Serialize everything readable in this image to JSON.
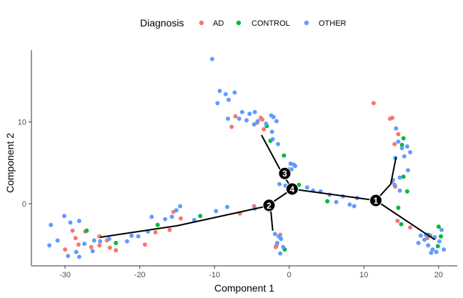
{
  "chart_data": {
    "type": "scatter",
    "title": "",
    "xlabel": "Component 1",
    "ylabel": "Component 2",
    "xlim": [
      -34.5,
      22.5
    ],
    "ylim": [
      -7.6,
      18.8
    ],
    "x_ticks": [
      -30,
      -20,
      -10,
      0,
      10,
      20
    ],
    "y_ticks": [
      0,
      10
    ],
    "tick_labels_x": [
      "-30",
      "-20",
      "-10",
      "0",
      "10",
      "20"
    ],
    "tick_labels_y": [
      "0",
      "10"
    ],
    "grid": false,
    "legend": {
      "title": "Diagnosis",
      "placement": "top",
      "entries": [
        "AD",
        "CONTROL",
        "OTHER"
      ]
    },
    "colors": {
      "AD": "#F8766D",
      "CONTROL": "#00BA38",
      "OTHER": "#619CFF"
    },
    "series": [
      {
        "name": "AD",
        "points": [
          [
            -27.3,
            -3.4
          ],
          [
            -25.4,
            -4.0
          ],
          [
            -25.4,
            -5.1
          ],
          [
            -24.0,
            -5.4
          ],
          [
            -24.4,
            -4.5
          ],
          [
            -23.2,
            -5.7
          ],
          [
            -28.6,
            -4.2
          ],
          [
            -29.0,
            -3.3
          ],
          [
            -30.0,
            -5.6
          ],
          [
            -28.2,
            -5.0
          ],
          [
            -26.5,
            -5.3
          ],
          [
            -19.3,
            -5.0
          ],
          [
            -17.9,
            -3.5
          ],
          [
            -16.0,
            -3.2
          ],
          [
            -14.5,
            -1.8
          ],
          [
            -15.5,
            -1.0
          ],
          [
            -6.6,
            -1.2
          ],
          [
            -2.7,
            -0.8
          ],
          [
            -4.7,
            -0.3
          ],
          [
            -1.2,
            -3.8
          ],
          [
            -1.7,
            -5.1
          ],
          [
            -1.8,
            -5.3
          ],
          [
            -7.2,
            10.7
          ],
          [
            -3.6,
            10.3
          ],
          [
            -4.3,
            9.9
          ],
          [
            -3.4,
            9.1
          ],
          [
            -3.8,
            10.5
          ],
          [
            -7.7,
            9.4
          ],
          [
            11.3,
            12.3
          ],
          [
            13.5,
            10.4
          ],
          [
            13.8,
            10.5
          ],
          [
            14.6,
            8.5
          ],
          [
            14.1,
            7.3
          ],
          [
            13.8,
            2.7
          ],
          [
            14.2,
            2.1
          ],
          [
            14.5,
            -2.1
          ],
          [
            16.2,
            -2.9
          ],
          [
            18.5,
            -4.2
          ]
        ]
      },
      {
        "name": "CONTROL",
        "points": [
          [
            -27.1,
            -3.3
          ],
          [
            -23.2,
            -4.8
          ],
          [
            -17.6,
            -2.6
          ],
          [
            -11.9,
            -1.5
          ],
          [
            -0.6,
            -5.6
          ],
          [
            -3.0,
            9.5
          ],
          [
            -2.5,
            7.7
          ],
          [
            -0.7,
            5.9
          ],
          [
            1.3,
            2.3
          ],
          [
            5.1,
            0.3
          ],
          [
            15.3,
            8.0
          ],
          [
            15.1,
            7.2
          ],
          [
            15.3,
            3.3
          ],
          [
            15.8,
            1.5
          ],
          [
            14.6,
            -0.5
          ],
          [
            15.0,
            -2.5
          ],
          [
            20.0,
            -2.8
          ],
          [
            20.3,
            -4.0
          ],
          [
            19.9,
            -5.2
          ],
          [
            18.6,
            -3.8
          ]
        ]
      },
      {
        "name": "OTHER",
        "points": [
          [
            -10.3,
            17.7
          ],
          [
            -9.3,
            13.8
          ],
          [
            -8.5,
            13.4
          ],
          [
            -8.1,
            12.7
          ],
          [
            -7.3,
            13.6
          ],
          [
            -9.6,
            12.3
          ],
          [
            -6.7,
            10.4
          ],
          [
            -6.3,
            11.2
          ],
          [
            -5.3,
            11.0
          ],
          [
            -4.6,
            11.2
          ],
          [
            -2.4,
            10.8
          ],
          [
            -2.1,
            10.6
          ],
          [
            -1.7,
            10.1
          ],
          [
            -8.2,
            10.4
          ],
          [
            -5.7,
            10.2
          ],
          [
            -4.7,
            9.7
          ],
          [
            -4.2,
            10.1
          ],
          [
            -3.1,
            9.8
          ],
          [
            -2.3,
            8.8
          ],
          [
            -2.2,
            7.9
          ],
          [
            -1.5,
            7.3
          ],
          [
            0.2,
            4.9
          ],
          [
            0.8,
            4.6
          ],
          [
            0.3,
            4.2
          ],
          [
            0.6,
            4.8
          ],
          [
            -0.1,
            4.2
          ],
          [
            -1.3,
            2.4
          ],
          [
            -0.5,
            2.2
          ],
          [
            2.4,
            2.0
          ],
          [
            3.2,
            1.6
          ],
          [
            4.2,
            1.5
          ],
          [
            5.4,
            1.1
          ],
          [
            7.2,
            0.9
          ],
          [
            9.1,
            0.7
          ],
          [
            11.0,
            0.2
          ],
          [
            6.3,
            0.2
          ],
          [
            8.1,
            -0.1
          ],
          [
            8.7,
            -0.3
          ],
          [
            -2.5,
            -0.6
          ],
          [
            -4.6,
            -0.6
          ],
          [
            -8.3,
            -0.4
          ],
          [
            -9.8,
            -0.9
          ],
          [
            -12.7,
            -2.0
          ],
          [
            -14.6,
            -0.3
          ],
          [
            -15.1,
            -0.8
          ],
          [
            -15.7,
            -1.6
          ],
          [
            -16.6,
            -1.9
          ],
          [
            -18.4,
            -1.6
          ],
          [
            -18.9,
            -3.4
          ],
          [
            -20.2,
            -4.0
          ],
          [
            -21.1,
            -3.9
          ],
          [
            -21.7,
            -4.6
          ],
          [
            -24.1,
            -4.3
          ],
          [
            -25.3,
            -4.6
          ],
          [
            -26.1,
            -4.5
          ],
          [
            -27.4,
            -4.9
          ],
          [
            -28.5,
            -5.9
          ],
          [
            -29.6,
            -6.4
          ],
          [
            -30.1,
            -1.5
          ],
          [
            -31.0,
            -4.5
          ],
          [
            -32.1,
            -5.1
          ],
          [
            -29.3,
            -2.3
          ],
          [
            -28.1,
            -2.1
          ],
          [
            -31.9,
            -2.6
          ],
          [
            -26.3,
            -5.8
          ],
          [
            -28.1,
            -6.5
          ],
          [
            -1.1,
            -4.3
          ],
          [
            -1.6,
            -4.8
          ],
          [
            -0.8,
            -5.3
          ],
          [
            -1.4,
            -4.0
          ],
          [
            -1.9,
            -3.7
          ],
          [
            -1.2,
            -6.1
          ],
          [
            14.3,
            9.2
          ],
          [
            14.6,
            7.6
          ],
          [
            15.8,
            7.0
          ],
          [
            15.1,
            6.8
          ],
          [
            16.2,
            6.3
          ],
          [
            15.4,
            5.8
          ],
          [
            14.2,
            5.6
          ],
          [
            15.9,
            4.1
          ],
          [
            14.8,
            3.2
          ],
          [
            14.1,
            2.3
          ],
          [
            13.9,
            2.9
          ],
          [
            14.8,
            1.6
          ],
          [
            18.3,
            -3.8
          ],
          [
            18.9,
            -3.9
          ],
          [
            19.5,
            -4.1
          ],
          [
            20.1,
            -4.6
          ],
          [
            18.6,
            -5.1
          ],
          [
            19.2,
            -5.6
          ],
          [
            19.7,
            -5.9
          ],
          [
            20.7,
            -5.6
          ],
          [
            18.1,
            -4.4
          ],
          [
            17.6,
            -3.9
          ],
          [
            19.0,
            -6.0
          ],
          [
            20.4,
            -3.2
          ],
          [
            17.3,
            -4.8
          ]
        ]
      }
    ],
    "trajectory": {
      "branches": [
        [
          [
            -25.3,
            -4.1
          ],
          [
            -15,
            -2.7
          ],
          [
            -3.0,
            -0.3
          ],
          [
            0.4,
            1.8
          ]
        ],
        [
          [
            -2.5,
            -0.4
          ],
          [
            -2.2,
            -3.3
          ]
        ],
        [
          [
            0.4,
            1.8
          ],
          [
            -1.0,
            3.8
          ],
          [
            -3.7,
            8.4
          ]
        ],
        [
          [
            0.4,
            1.8
          ],
          [
            11.6,
            0.4
          ]
        ],
        [
          [
            11.6,
            0.4
          ],
          [
            13.6,
            2.4
          ],
          [
            14.3,
            5.7
          ]
        ],
        [
          [
            11.6,
            0.4
          ],
          [
            19.5,
            -4.4
          ]
        ]
      ],
      "nodes": [
        {
          "label": "1",
          "x": 11.6,
          "y": 0.4
        },
        {
          "label": "2",
          "x": -2.7,
          "y": -0.2
        },
        {
          "label": "3",
          "x": -0.6,
          "y": 3.7
        },
        {
          "label": "4",
          "x": 0.4,
          "y": 1.8
        }
      ]
    }
  }
}
